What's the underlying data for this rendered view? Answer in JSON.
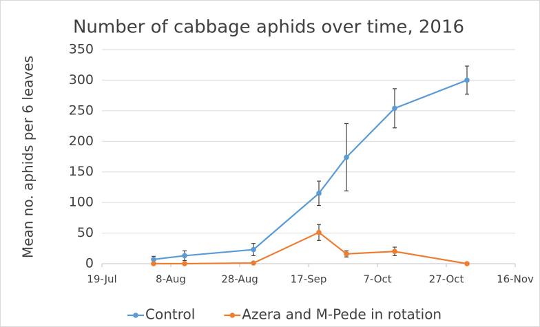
{
  "chart_data": {
    "type": "line",
    "title": "Number of cabbage aphids over time, 2016",
    "y_label": "Mean no. aphids per 6 leaves",
    "x": [
      216,
      225,
      245,
      264,
      272,
      286,
      307
    ],
    "series": [
      {
        "name": "Control",
        "color": "#5b9bd5",
        "values": [
          7,
          13,
          23,
          115,
          174,
          254,
          300
        ],
        "errors": [
          5,
          8,
          10,
          20,
          55,
          32,
          23
        ]
      },
      {
        "name": "Azera and M-Pede in rotation",
        "color": "#ed7d31",
        "values": [
          0,
          0,
          1,
          51,
          16,
          20,
          0
        ],
        "errors": [
          0,
          0,
          0,
          13,
          5,
          7,
          0
        ]
      }
    ],
    "xlim": [
      201,
      321
    ],
    "xticks": [
      {
        "value": 201,
        "label": "19-Jul"
      },
      {
        "value": 221,
        "label": "8-Aug"
      },
      {
        "value": 241,
        "label": "28-Aug"
      },
      {
        "value": 261,
        "label": "17-Sep"
      },
      {
        "value": 281,
        "label": "7-Oct"
      },
      {
        "value": 301,
        "label": "27-Oct"
      },
      {
        "value": 321,
        "label": "16-Nov"
      }
    ],
    "ylim": [
      0,
      350
    ],
    "yticks": [
      0,
      50,
      100,
      150,
      200,
      250,
      300,
      350
    ],
    "grid": true,
    "legend": "bottom"
  }
}
